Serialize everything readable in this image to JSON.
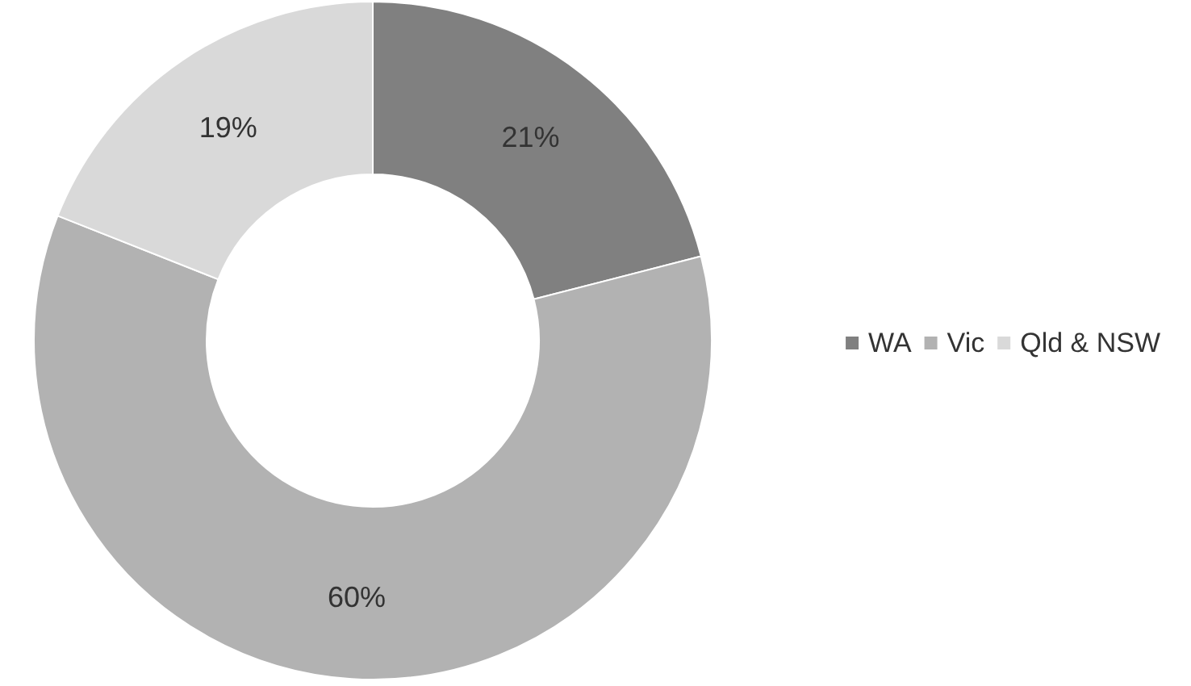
{
  "chart_data": {
    "type": "donut",
    "categories": [
      "WA",
      "Vic",
      "Qld & NSW"
    ],
    "values": [
      21,
      60,
      19
    ],
    "colors": [
      "#808080",
      "#b2b2b2",
      "#d9d9d9"
    ],
    "value_labels": [
      "21%",
      "60%",
      "19%"
    ],
    "legend": "right"
  }
}
